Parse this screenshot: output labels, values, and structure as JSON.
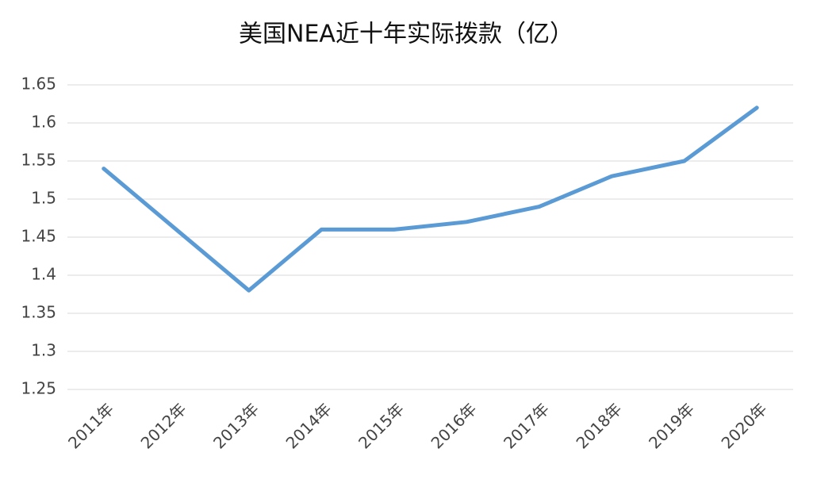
{
  "chart_data": {
    "type": "line",
    "title": "美国NEA近十年实际拨款（亿）",
    "categories": [
      "2011年",
      "2012年",
      "2013年",
      "2014年",
      "2015年",
      "2016年",
      "2017年",
      "2018年",
      "2019年",
      "2020年"
    ],
    "values": [
      1.54,
      1.46,
      1.38,
      1.46,
      1.46,
      1.47,
      1.49,
      1.53,
      1.55,
      1.62
    ],
    "color": "#5b9bd5",
    "ylim": [
      1.25,
      1.65
    ],
    "yticks": [
      1.25,
      1.3,
      1.35,
      1.4,
      1.45,
      1.5,
      1.55,
      1.6,
      1.65
    ],
    "grid": true
  }
}
